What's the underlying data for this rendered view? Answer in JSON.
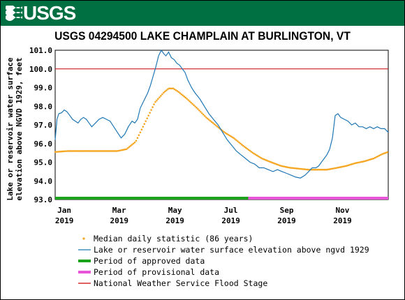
{
  "header": {
    "logo_label": "USGS"
  },
  "chart_data": {
    "type": "line",
    "title": "USGS 04294500 LAKE CHAMPLAIN AT BURLINGTON, VT",
    "ylabel_line1": "Lake or reservoir water surface",
    "ylabel_line2": "elevation above NGVD 1929, feet",
    "ylim": [
      93.0,
      101.0
    ],
    "yticks": [
      "101.0",
      "100.0",
      "99.0",
      "98.0",
      "97.0",
      "96.0",
      "95.0",
      "94.0",
      "93.0"
    ],
    "xlim": [
      "2019-01-01",
      "2019-12-31"
    ],
    "xticks": [
      {
        "date": "2019-01-11",
        "label": "Jan",
        "year": "2019"
      },
      {
        "date": "2019-03-12",
        "label": "Mar",
        "year": "2019"
      },
      {
        "date": "2019-05-12",
        "label": "May",
        "year": "2019"
      },
      {
        "date": "2019-07-12",
        "label": "Jul",
        "year": "2019"
      },
      {
        "date": "2019-09-11",
        "label": "Sep",
        "year": "2019"
      },
      {
        "date": "2019-11-11",
        "label": "Nov",
        "year": "2019"
      }
    ],
    "flood_stage": 100.0,
    "approved_period": [
      "2019-01-01",
      "2019-07-31"
    ],
    "provisional_period": [
      "2019-07-31",
      "2019-12-31"
    ],
    "colors": {
      "median": "#f5a623",
      "elevation": "#1f77b4",
      "approved": "#1aa31a",
      "provisional": "#e855d8",
      "flood": "#cc0000"
    },
    "series": [
      {
        "name": "Lake or reservoir water surface elevation above ngvd 1929",
        "dates": [
          "2019-01-01",
          "2019-01-03",
          "2019-01-05",
          "2019-01-08",
          "2019-01-11",
          "2019-01-14",
          "2019-01-17",
          "2019-01-20",
          "2019-01-23",
          "2019-01-26",
          "2019-01-29",
          "2019-02-01",
          "2019-02-04",
          "2019-02-07",
          "2019-02-10",
          "2019-02-14",
          "2019-02-18",
          "2019-02-22",
          "2019-02-26",
          "2019-03-02",
          "2019-03-06",
          "2019-03-10",
          "2019-03-14",
          "2019-03-18",
          "2019-03-22",
          "2019-03-26",
          "2019-03-29",
          "2019-04-01",
          "2019-04-04",
          "2019-04-08",
          "2019-04-12",
          "2019-04-15",
          "2019-04-18",
          "2019-04-21",
          "2019-04-24",
          "2019-04-27",
          "2019-04-30",
          "2019-05-02",
          "2019-05-05",
          "2019-05-08",
          "2019-05-11",
          "2019-05-14",
          "2019-05-17",
          "2019-05-20",
          "2019-05-23",
          "2019-05-26",
          "2019-05-30",
          "2019-06-03",
          "2019-06-08",
          "2019-06-13",
          "2019-06-18",
          "2019-06-23",
          "2019-06-28",
          "2019-07-03",
          "2019-07-08",
          "2019-07-13",
          "2019-07-18",
          "2019-07-23",
          "2019-07-28",
          "2019-08-02",
          "2019-08-07",
          "2019-08-12",
          "2019-08-17",
          "2019-08-22",
          "2019-08-27",
          "2019-09-01",
          "2019-09-06",
          "2019-09-11",
          "2019-09-16",
          "2019-09-21",
          "2019-09-26",
          "2019-10-01",
          "2019-10-05",
          "2019-10-09",
          "2019-10-13",
          "2019-10-16",
          "2019-10-19",
          "2019-10-22",
          "2019-10-25",
          "2019-10-28",
          "2019-10-31",
          "2019-11-03",
          "2019-11-06",
          "2019-11-09",
          "2019-11-13",
          "2019-11-17",
          "2019-11-21",
          "2019-11-25",
          "2019-11-29",
          "2019-12-03",
          "2019-12-07",
          "2019-12-11",
          "2019-12-15",
          "2019-12-19",
          "2019-12-23",
          "2019-12-27",
          "2019-12-31"
        ],
        "values": [
          96.2,
          97.3,
          97.6,
          97.65,
          97.8,
          97.7,
          97.5,
          97.3,
          97.2,
          97.1,
          97.3,
          97.4,
          97.3,
          97.1,
          96.9,
          97.1,
          97.3,
          97.4,
          97.3,
          97.2,
          96.9,
          96.6,
          96.3,
          96.5,
          96.9,
          97.2,
          97.1,
          97.3,
          97.9,
          98.3,
          98.7,
          99.1,
          99.6,
          100.1,
          100.7,
          101.0,
          100.8,
          100.7,
          100.9,
          100.6,
          100.5,
          100.3,
          100.2,
          100.0,
          99.8,
          99.4,
          99.0,
          98.7,
          98.4,
          98.0,
          97.6,
          97.3,
          97.0,
          96.6,
          96.2,
          95.9,
          95.6,
          95.4,
          95.2,
          95.0,
          94.9,
          94.7,
          94.7,
          94.6,
          94.5,
          94.6,
          94.5,
          94.4,
          94.3,
          94.2,
          94.15,
          94.3,
          94.5,
          94.7,
          94.7,
          94.8,
          95.0,
          95.2,
          95.4,
          95.7,
          96.3,
          97.5,
          97.6,
          97.4,
          97.3,
          97.2,
          97.0,
          97.1,
          96.9,
          96.9,
          96.8,
          96.9,
          96.8,
          96.9,
          96.8,
          96.8,
          96.6
        ]
      },
      {
        "name": "Median daily statistic (86 years)",
        "dates": [
          "2019-01-01",
          "2019-01-15",
          "2019-02-01",
          "2019-02-15",
          "2019-03-01",
          "2019-03-10",
          "2019-03-20",
          "2019-03-30",
          "2019-04-10",
          "2019-04-20",
          "2019-04-30",
          "2019-05-05",
          "2019-05-10",
          "2019-05-15",
          "2019-05-25",
          "2019-06-05",
          "2019-06-15",
          "2019-06-25",
          "2019-07-05",
          "2019-07-15",
          "2019-07-25",
          "2019-08-05",
          "2019-08-15",
          "2019-08-25",
          "2019-09-05",
          "2019-09-15",
          "2019-09-25",
          "2019-10-05",
          "2019-10-15",
          "2019-10-25",
          "2019-11-05",
          "2019-11-15",
          "2019-11-25",
          "2019-12-05",
          "2019-12-15",
          "2019-12-25",
          "2019-12-31"
        ],
        "values": [
          95.55,
          95.6,
          95.6,
          95.6,
          95.6,
          95.6,
          95.7,
          96.1,
          97.2,
          98.2,
          98.75,
          98.95,
          98.95,
          98.8,
          98.4,
          97.9,
          97.4,
          97.0,
          96.6,
          96.3,
          95.9,
          95.5,
          95.2,
          95.0,
          94.8,
          94.7,
          94.65,
          94.6,
          94.6,
          94.6,
          94.7,
          94.8,
          94.95,
          95.05,
          95.2,
          95.45,
          95.55
        ]
      }
    ],
    "legend": [
      {
        "key": "median",
        "label": "Median daily statistic (86 years)"
      },
      {
        "key": "elevation",
        "label": "Lake or reservoir water surface elevation above ngvd 1929"
      },
      {
        "key": "approved",
        "label": "Period of approved data"
      },
      {
        "key": "provisional",
        "label": "Period of provisional data"
      },
      {
        "key": "flood",
        "label": "National Weather Service Flood Stage"
      }
    ]
  }
}
